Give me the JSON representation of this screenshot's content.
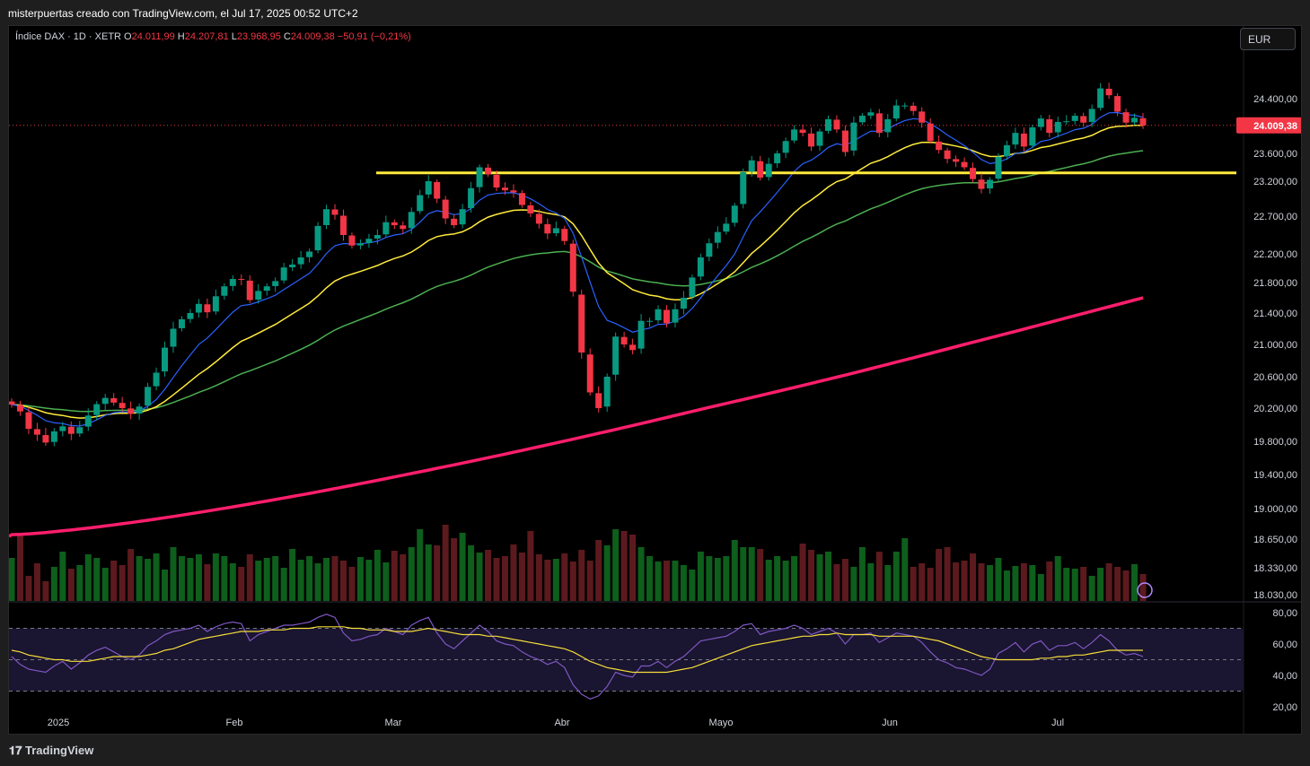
{
  "snapshot_title": "misterpuertas creado con TradingView.com, el Jul 17, 2025 00:52 UTC+2",
  "legend": {
    "symbol": "Índice DAX · 1D · XETR",
    "o_label": "O",
    "o_value": "24.011,99",
    "h_label": "H",
    "h_value": "24.207,81",
    "l_label": "L",
    "l_value": "23.968,95",
    "c_label": "C",
    "c_value": "24.009,38",
    "change": "−50,91 (−0,21%)"
  },
  "currency": "EUR",
  "last_price_label": "24.009,38",
  "footer_logo": "TradingView",
  "colors": {
    "up": "#089981",
    "down": "#f23645",
    "vol_up": "#0e5e1c",
    "vol_down": "#5c1a1e",
    "ema_fast": "#2962ff",
    "ema_mid": "#ffeb3b",
    "sma_50": "#4caf50",
    "sma_200": "#ff1e6c",
    "support": "#ffeb3b",
    "rsi": "#7e57c2",
    "rsi_ma": "#f5dd3b"
  },
  "chart_data": [
    {
      "type": "candlestick",
      "title": "Índice DAX · 1D · XETR",
      "x_tick_labels": [
        "2025",
        "Feb",
        "Mar",
        "Abr",
        "Mayo",
        "Jun",
        "Jul"
      ],
      "y_tick_labels": [
        "24.400,00",
        "23.600,00",
        "23.200,00",
        "22.700,00",
        "22.200,00",
        "21.800,00",
        "21.400,00",
        "21.000,00",
        "20.600,00",
        "20.200,00",
        "19.800,00",
        "19.400,00",
        "19.000,00",
        "18.650,00",
        "18.330,00",
        "18.030,00"
      ],
      "y_tick_values": [
        24400,
        23600,
        23200,
        22700,
        22200,
        21800,
        21400,
        21000,
        20600,
        20200,
        19800,
        19400,
        19000,
        18650,
        18330,
        18030
      ],
      "support_level": 23320,
      "last_price": 24009.38,
      "close": [
        20245,
        20160,
        19950,
        19880,
        19785,
        19920,
        19980,
        19890,
        19970,
        20110,
        20250,
        20330,
        20270,
        20200,
        20130,
        20220,
        20470,
        20650,
        20960,
        21200,
        21320,
        21400,
        21520,
        21410,
        21620,
        21750,
        21850,
        21840,
        21570,
        21690,
        21750,
        21820,
        22010,
        22050,
        22150,
        22230,
        22570,
        22800,
        22720,
        22450,
        22310,
        22340,
        22400,
        22450,
        22620,
        22580,
        22530,
        22760,
        23000,
        23200,
        22950,
        22670,
        22580,
        22800,
        23100,
        23400,
        23300,
        23110,
        23070,
        23040,
        22860,
        22740,
        22600,
        22470,
        22540,
        22370,
        21680,
        20900,
        20400,
        20200,
        20600,
        21100,
        21000,
        20930,
        21300,
        21300,
        21450,
        21270,
        21450,
        21600,
        21870,
        22150,
        22340,
        22490,
        22600,
        22850,
        23330,
        23500,
        23250,
        23450,
        23600,
        23780,
        23950,
        23900,
        23700,
        23920,
        24100,
        23950,
        23620,
        24050,
        24150,
        24200,
        23900,
        24100,
        24300,
        24300,
        24220,
        24050,
        23780,
        23650,
        23520,
        23480,
        23400,
        23230,
        23090,
        23220,
        23550,
        23720,
        23900,
        23700,
        23980,
        24110,
        23900,
        24060,
        24070,
        24150,
        24050,
        24250,
        24550,
        24450,
        24210,
        24050,
        24120,
        24009
      ]
    },
    {
      "type": "bar",
      "title": "Volume",
      "note": "relative volume per session (0-1)",
      "values": [
        0.48,
        0.75,
        0.28,
        0.42,
        0.22,
        0.38,
        0.55,
        0.36,
        0.4,
        0.52,
        0.48,
        0.37,
        0.45,
        0.4,
        0.58,
        0.5,
        0.47,
        0.53,
        0.35,
        0.6,
        0.5,
        0.48,
        0.52,
        0.41,
        0.53,
        0.5,
        0.42,
        0.38,
        0.52,
        0.45,
        0.48,
        0.5,
        0.37,
        0.58,
        0.46,
        0.5,
        0.42,
        0.48,
        0.5,
        0.45,
        0.38,
        0.49,
        0.46,
        0.57,
        0.43,
        0.56,
        0.52,
        0.6,
        0.8,
        0.63,
        0.62,
        0.85,
        0.7,
        0.76,
        0.62,
        0.54,
        0.57,
        0.48,
        0.5,
        0.63,
        0.54,
        0.78,
        0.52,
        0.46,
        0.47,
        0.53,
        0.44,
        0.57,
        0.45,
        0.68,
        0.62,
        0.8,
        0.78,
        0.74,
        0.6,
        0.5,
        0.44,
        0.45,
        0.45,
        0.4,
        0.35,
        0.55,
        0.5,
        0.48,
        0.5,
        0.68,
        0.6,
        0.6,
        0.58,
        0.46,
        0.5,
        0.45,
        0.5,
        0.64,
        0.57,
        0.52,
        0.55,
        0.41,
        0.47,
        0.38,
        0.6,
        0.42,
        0.55,
        0.4,
        0.55,
        0.7,
        0.38,
        0.42,
        0.37,
        0.58,
        0.6,
        0.43,
        0.45,
        0.53,
        0.42,
        0.4,
        0.48,
        0.34,
        0.39,
        0.42,
        0.4,
        0.3,
        0.44,
        0.5,
        0.37,
        0.36,
        0.38,
        0.28,
        0.37,
        0.42,
        0.38,
        0.34,
        0.41,
        0.3
      ]
    },
    {
      "type": "line",
      "title": "RSI",
      "y_tick_labels": [
        "80,00",
        "60,00",
        "40,00",
        "20,00"
      ],
      "y_tick_values": [
        80,
        60,
        40,
        20
      ],
      "bands": [
        70,
        50,
        30
      ],
      "series": [
        {
          "values": [
            52,
            47,
            44,
            43,
            42,
            46,
            49,
            44,
            48,
            53,
            56,
            58,
            55,
            52,
            50,
            53,
            59,
            62,
            66,
            68,
            69,
            70,
            72,
            68,
            71,
            73,
            74,
            73,
            62,
            66,
            68,
            70,
            72,
            72,
            73,
            74,
            77,
            79,
            77,
            67,
            62,
            63,
            65,
            66,
            70,
            68,
            66,
            72,
            75,
            77,
            67,
            60,
            57,
            62,
            67,
            72,
            68,
            62,
            60,
            59,
            55,
            52,
            50,
            47,
            49,
            45,
            34,
            28,
            25,
            27,
            33,
            42,
            40,
            39,
            46,
            46,
            49,
            45,
            49,
            52,
            57,
            62,
            63,
            64,
            65,
            68,
            72,
            73,
            66,
            68,
            69,
            70,
            72,
            70,
            66,
            68,
            70,
            67,
            60,
            66,
            66,
            67,
            61,
            64,
            67,
            66,
            65,
            61,
            55,
            50,
            48,
            45,
            44,
            42,
            40,
            44,
            54,
            57,
            61,
            55,
            60,
            62,
            56,
            59,
            59,
            61,
            57,
            61,
            66,
            62,
            56,
            53,
            54,
            52
          ]
        },
        {
          "values": [
            56,
            55,
            53,
            52,
            51,
            50,
            50,
            49,
            49,
            49,
            50,
            51,
            52,
            52,
            52,
            52,
            53,
            54,
            56,
            57,
            59,
            61,
            63,
            64,
            65,
            66,
            67,
            68,
            68,
            68,
            69,
            69,
            69,
            70,
            70,
            70,
            71,
            71,
            71,
            71,
            70,
            70,
            69,
            69,
            69,
            68,
            68,
            68,
            69,
            70,
            69,
            68,
            67,
            66,
            66,
            66,
            65,
            65,
            64,
            63,
            62,
            61,
            60,
            59,
            58,
            57,
            55,
            52,
            49,
            47,
            45,
            44,
            43,
            42,
            42,
            42,
            42,
            42,
            43,
            44,
            45,
            47,
            49,
            51,
            53,
            55,
            57,
            59,
            60,
            61,
            62,
            63,
            64,
            65,
            65,
            66,
            66,
            67,
            66,
            66,
            66,
            66,
            65,
            65,
            65,
            65,
            65,
            64,
            63,
            62,
            60,
            58,
            56,
            54,
            52,
            51,
            50,
            50,
            50,
            50,
            50,
            51,
            51,
            52,
            52,
            53,
            53,
            54,
            55,
            56,
            56,
            56,
            56,
            56
          ]
        }
      ]
    }
  ]
}
